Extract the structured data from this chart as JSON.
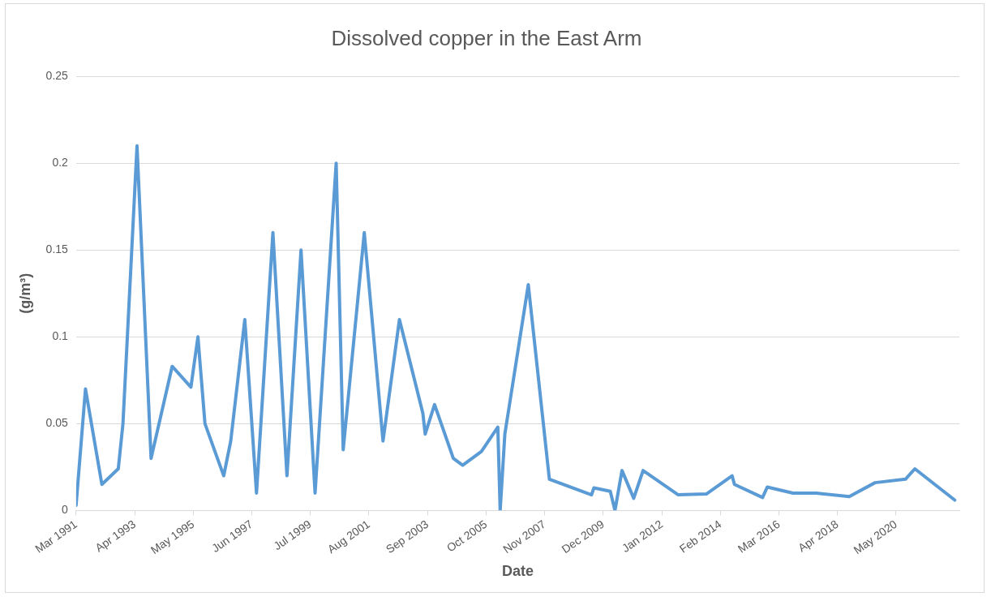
{
  "chart_data": {
    "type": "line",
    "title": "Dissolved copper in the East Arm",
    "xlabel": "Date",
    "ylabel": "(g/m³)",
    "x": [
      "1991-03",
      "1991-07",
      "1992-02",
      "1992-09",
      "1992-11",
      "1993-05",
      "1993-11",
      "1994-08",
      "1995-04",
      "1995-07",
      "1995-10",
      "1996-06",
      "1996-09",
      "1997-03",
      "1997-08",
      "1998-03",
      "1998-09",
      "1999-03",
      "1999-09",
      "2000-06",
      "2000-09",
      "2001-06",
      "2002-02",
      "2002-09",
      "2003-07",
      "2003-08",
      "2003-12",
      "2004-08",
      "2004-12",
      "2005-08",
      "2006-03",
      "2006-04",
      "2006-06",
      "2007-04",
      "2008-01",
      "2009-07",
      "2009-08",
      "2010-03",
      "2010-05",
      "2010-08",
      "2011-01",
      "2011-05",
      "2012-08",
      "2013-08",
      "2014-07",
      "2014-08",
      "2015-08",
      "2015-10",
      "2016-09",
      "2017-07",
      "2018-09",
      "2019-08",
      "2020-09",
      "2021-01",
      "2022-06"
    ],
    "series": [
      {
        "color": "#5b9bd5",
        "values": [
          0.003,
          0.07,
          0.015,
          0.024,
          0.05,
          0.21,
          0.03,
          0.083,
          0.071,
          0.1,
          0.05,
          0.02,
          0.04,
          0.11,
          0.01,
          0.16,
          0.02,
          0.15,
          0.01,
          0.2,
          0.035,
          0.16,
          0.04,
          0.11,
          0.056,
          0.044,
          0.061,
          0.03,
          0.026,
          0.034,
          0.048,
          0,
          0.044,
          0.13,
          0.018,
          0.009,
          0.013,
          0.011,
          0,
          0.023,
          0.007,
          0.023,
          0.009,
          0.0095,
          0.02,
          0.015,
          0.0075,
          0.0135,
          0.01,
          0.01,
          0.008,
          0.016,
          0.018,
          0.024,
          0.006
        ]
      }
    ],
    "xlim": [
      "1991-03",
      "2022-08"
    ],
    "xticks": [
      {
        "value": "1991-03",
        "label": "Mar 1991"
      },
      {
        "value": "1993-04",
        "label": "Apr 1993"
      },
      {
        "value": "1995-05",
        "label": "May 1995"
      },
      {
        "value": "1997-06",
        "label": "Jun 1997"
      },
      {
        "value": "1999-07",
        "label": "Jul 1999"
      },
      {
        "value": "2001-08",
        "label": "Aug 2001"
      },
      {
        "value": "2003-09",
        "label": "Sep 2003"
      },
      {
        "value": "2005-10",
        "label": "Oct 2005"
      },
      {
        "value": "2007-11",
        "label": "Nov 2007"
      },
      {
        "value": "2009-12",
        "label": "Dec 2009"
      },
      {
        "value": "2012-01",
        "label": "Jan 2012"
      },
      {
        "value": "2014-02",
        "label": "Feb 2014"
      },
      {
        "value": "2016-03",
        "label": "Mar 2016"
      },
      {
        "value": "2018-04",
        "label": "Apr 2018"
      },
      {
        "value": "2020-05",
        "label": "May 2020"
      }
    ],
    "ylim": [
      0,
      0.25
    ],
    "yticks": [
      0,
      0.05,
      0.1,
      0.15,
      0.2,
      0.25
    ],
    "grid": "y",
    "legend": false,
    "marker": "none",
    "line_style": "solid"
  }
}
